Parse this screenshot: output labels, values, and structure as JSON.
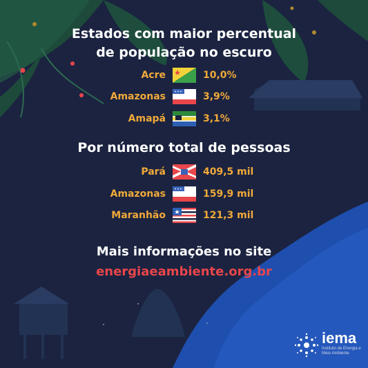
{
  "title_lines": [
    "Estados com maior percentual",
    "de população no escuro"
  ],
  "percent_rows": [
    {
      "state": "Acre",
      "value": "10,0%"
    },
    {
      "state": "Amazonas",
      "value": "3,9%"
    },
    {
      "state": "Amapá",
      "value": "3,1%"
    }
  ],
  "subtitle": "Por número total de pessoas",
  "total_rows": [
    {
      "state": "Pará",
      "value": "409,5 mil"
    },
    {
      "state": "Amazonas",
      "value": "159,9 mil"
    },
    {
      "state": "Maranhão",
      "value": "121,3 mil"
    }
  ],
  "footer": {
    "line1": "Mais informações no site",
    "link": "energiaeambiente.org.br"
  },
  "logo": {
    "word": "iema",
    "tagline": "Instituto de Energia e Meio Ambiente"
  },
  "colors": {
    "accent": "#f0a93a",
    "link": "#e8464a",
    "background": "#1b2340",
    "river": "#1f4fae"
  }
}
